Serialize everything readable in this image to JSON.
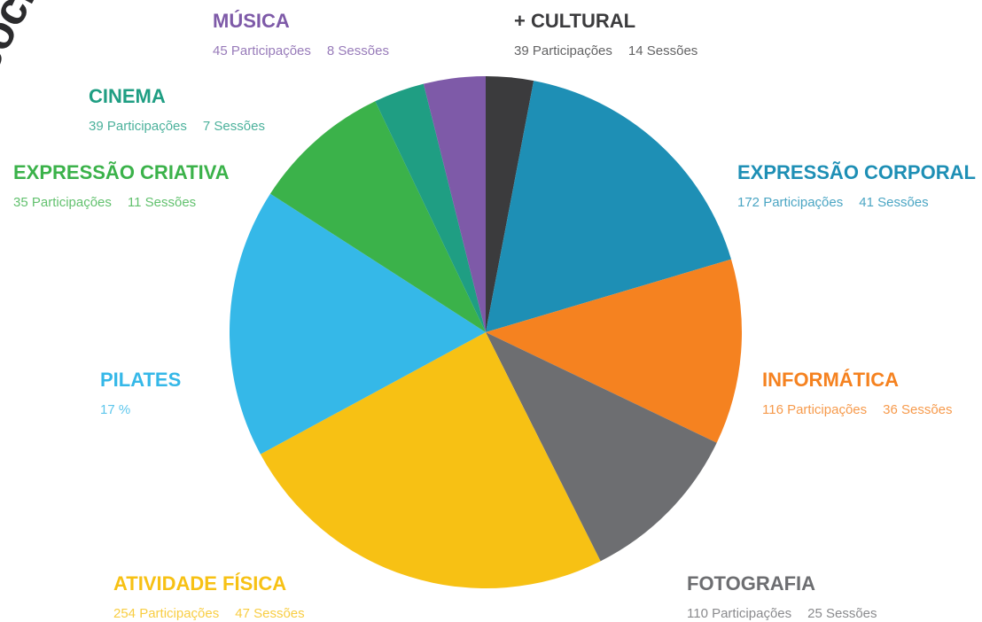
{
  "chart_data": {
    "type": "pie",
    "corner_text": "socio",
    "categories": [
      "+ CULTURAL",
      "EXPRESSÃO CORPORAL",
      "INFORMÁTICA",
      "FOTOGRAFIA",
      "ATIVIDADE FÍSICA",
      "PILATES",
      "EXPRESSÃO CRIATIVA",
      "CINEMA",
      "MÚSICA"
    ],
    "values": [
      3,
      17.4,
      11.7,
      10.5,
      24.5,
      17,
      8.8,
      3.2,
      3.9
    ],
    "value_labels": [
      null,
      null,
      null,
      null,
      null,
      "17 %",
      null,
      null,
      null
    ],
    "details": [
      [
        "39 Participações",
        "14 Sessões"
      ],
      [
        "172 Participações",
        "41 Sessões"
      ],
      [
        "116 Participações",
        "36 Sessões"
      ],
      [
        "110 Participações",
        "25 Sessões"
      ],
      [
        "254 Participações",
        "47 Sessões"
      ],
      [],
      [
        "35 Participações",
        "11 Sessões"
      ],
      [
        "39 Participações",
        "7 Sessões"
      ],
      [
        "45 Participações",
        "8 Sessões"
      ]
    ],
    "colors": [
      "#3b3b3d",
      "#1e8fb5",
      "#f58220",
      "#6d6e71",
      "#f7c114",
      "#35b8e8",
      "#3bb24a",
      "#1f9e83",
      "#7e5aa8"
    ]
  }
}
